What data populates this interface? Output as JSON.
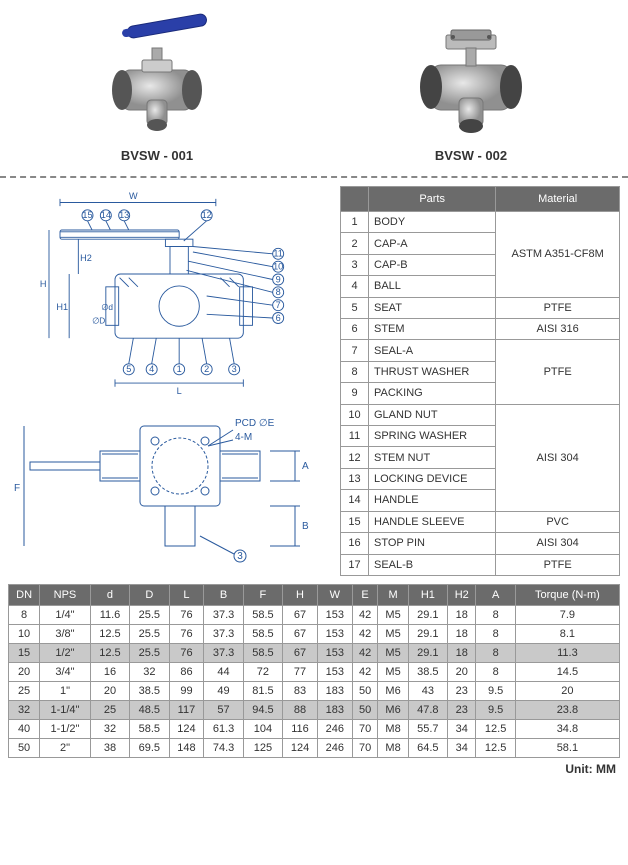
{
  "products": [
    {
      "label": "BVSW - 001"
    },
    {
      "label": "BVSW - 002"
    }
  ],
  "parts_headers": [
    "",
    "Parts",
    "Material"
  ],
  "parts_rows": [
    {
      "n": "1",
      "part": "BODY",
      "material": "ASTM A351-CF8M",
      "rowspan": 4
    },
    {
      "n": "2",
      "part": "CAP-A"
    },
    {
      "n": "3",
      "part": "CAP-B"
    },
    {
      "n": "4",
      "part": "BALL"
    },
    {
      "n": "5",
      "part": "SEAT",
      "material": "PTFE",
      "rowspan": 1
    },
    {
      "n": "6",
      "part": "STEM",
      "material": "AISI 316",
      "rowspan": 1
    },
    {
      "n": "7",
      "part": "SEAL-A",
      "material": "PTFE",
      "rowspan": 3
    },
    {
      "n": "8",
      "part": "THRUST WASHER"
    },
    {
      "n": "9",
      "part": "PACKING"
    },
    {
      "n": "10",
      "part": "GLAND NUT",
      "material": "AISI 304",
      "rowspan": 5
    },
    {
      "n": "11",
      "part": "SPRING WASHER"
    },
    {
      "n": "12",
      "part": "STEM NUT"
    },
    {
      "n": "13",
      "part": "LOCKING DEVICE"
    },
    {
      "n": "14",
      "part": "HANDLE"
    },
    {
      "n": "15",
      "part": "HANDLE SLEEVE",
      "material": "PVC",
      "rowspan": 1
    },
    {
      "n": "16",
      "part": "STOP PIN",
      "material": "AISI 304",
      "rowspan": 1
    },
    {
      "n": "17",
      "part": "SEAL-B",
      "material": "PTFE",
      "rowspan": 1
    }
  ],
  "dim_headers": [
    "DN",
    "NPS",
    "d",
    "D",
    "L",
    "B",
    "F",
    "H",
    "W",
    "E",
    "M",
    "H1",
    "H2",
    "A",
    "Torque (N-m)"
  ],
  "dim_rows": [
    {
      "shaded": false,
      "cells": [
        "8",
        "1/4\"",
        "11.6",
        "25.5",
        "76",
        "37.3",
        "58.5",
        "67",
        "153",
        "42",
        "M5",
        "29.1",
        "18",
        "8",
        "7.9"
      ]
    },
    {
      "shaded": false,
      "cells": [
        "10",
        "3/8\"",
        "12.5",
        "25.5",
        "76",
        "37.3",
        "58.5",
        "67",
        "153",
        "42",
        "M5",
        "29.1",
        "18",
        "8",
        "8.1"
      ]
    },
    {
      "shaded": true,
      "cells": [
        "15",
        "1/2\"",
        "12.5",
        "25.5",
        "76",
        "37.3",
        "58.5",
        "67",
        "153",
        "42",
        "M5",
        "29.1",
        "18",
        "8",
        "11.3"
      ]
    },
    {
      "shaded": false,
      "cells": [
        "20",
        "3/4\"",
        "16",
        "32",
        "86",
        "44",
        "72",
        "77",
        "153",
        "42",
        "M5",
        "38.5",
        "20",
        "8",
        "14.5"
      ]
    },
    {
      "shaded": false,
      "cells": [
        "25",
        "1\"",
        "20",
        "38.5",
        "99",
        "49",
        "81.5",
        "83",
        "183",
        "50",
        "M6",
        "43",
        "23",
        "9.5",
        "20"
      ]
    },
    {
      "shaded": true,
      "cells": [
        "32",
        "1-1/4\"",
        "25",
        "48.5",
        "117",
        "57",
        "94.5",
        "88",
        "183",
        "50",
        "M6",
        "47.8",
        "23",
        "9.5",
        "23.8"
      ]
    },
    {
      "shaded": false,
      "cells": [
        "40",
        "1-1/2\"",
        "32",
        "58.5",
        "124",
        "61.3",
        "104",
        "116",
        "246",
        "70",
        "M8",
        "55.7",
        "34",
        "12.5",
        "34.8"
      ]
    },
    {
      "shaded": false,
      "cells": [
        "50",
        "2\"",
        "38",
        "69.5",
        "148",
        "74.3",
        "125",
        "124",
        "246",
        "70",
        "M8",
        "64.5",
        "34",
        "12.5",
        "58.1"
      ]
    }
  ],
  "unit_label": "Unit: MM",
  "diagram_labels": {
    "w": "W",
    "h": "H",
    "h1": "H1",
    "h2": "H2",
    "l": "L",
    "f": "F",
    "pcd": "PCD ∅E",
    "fourM": "4-M",
    "a": "A",
    "b": "B",
    "callout_top": [
      "15",
      "14",
      "13",
      "12"
    ],
    "callout_mid": [
      "11",
      "10",
      "9",
      "8",
      "7",
      "6"
    ],
    "callout_bot": [
      "5",
      "4",
      "1",
      "2",
      "3"
    ],
    "d_label": "∅D",
    "d_inner": "∅d"
  },
  "colors": {
    "header_bg": "#6b6b6b",
    "header_fg": "#ffffff",
    "border": "#999999",
    "shaded_row": "#c9c9c9",
    "dash": "#888888",
    "handle_blue": "#2a3fa8",
    "valve_metal": "#b8b8b8",
    "diagram_stroke": "#2a5a9e"
  }
}
